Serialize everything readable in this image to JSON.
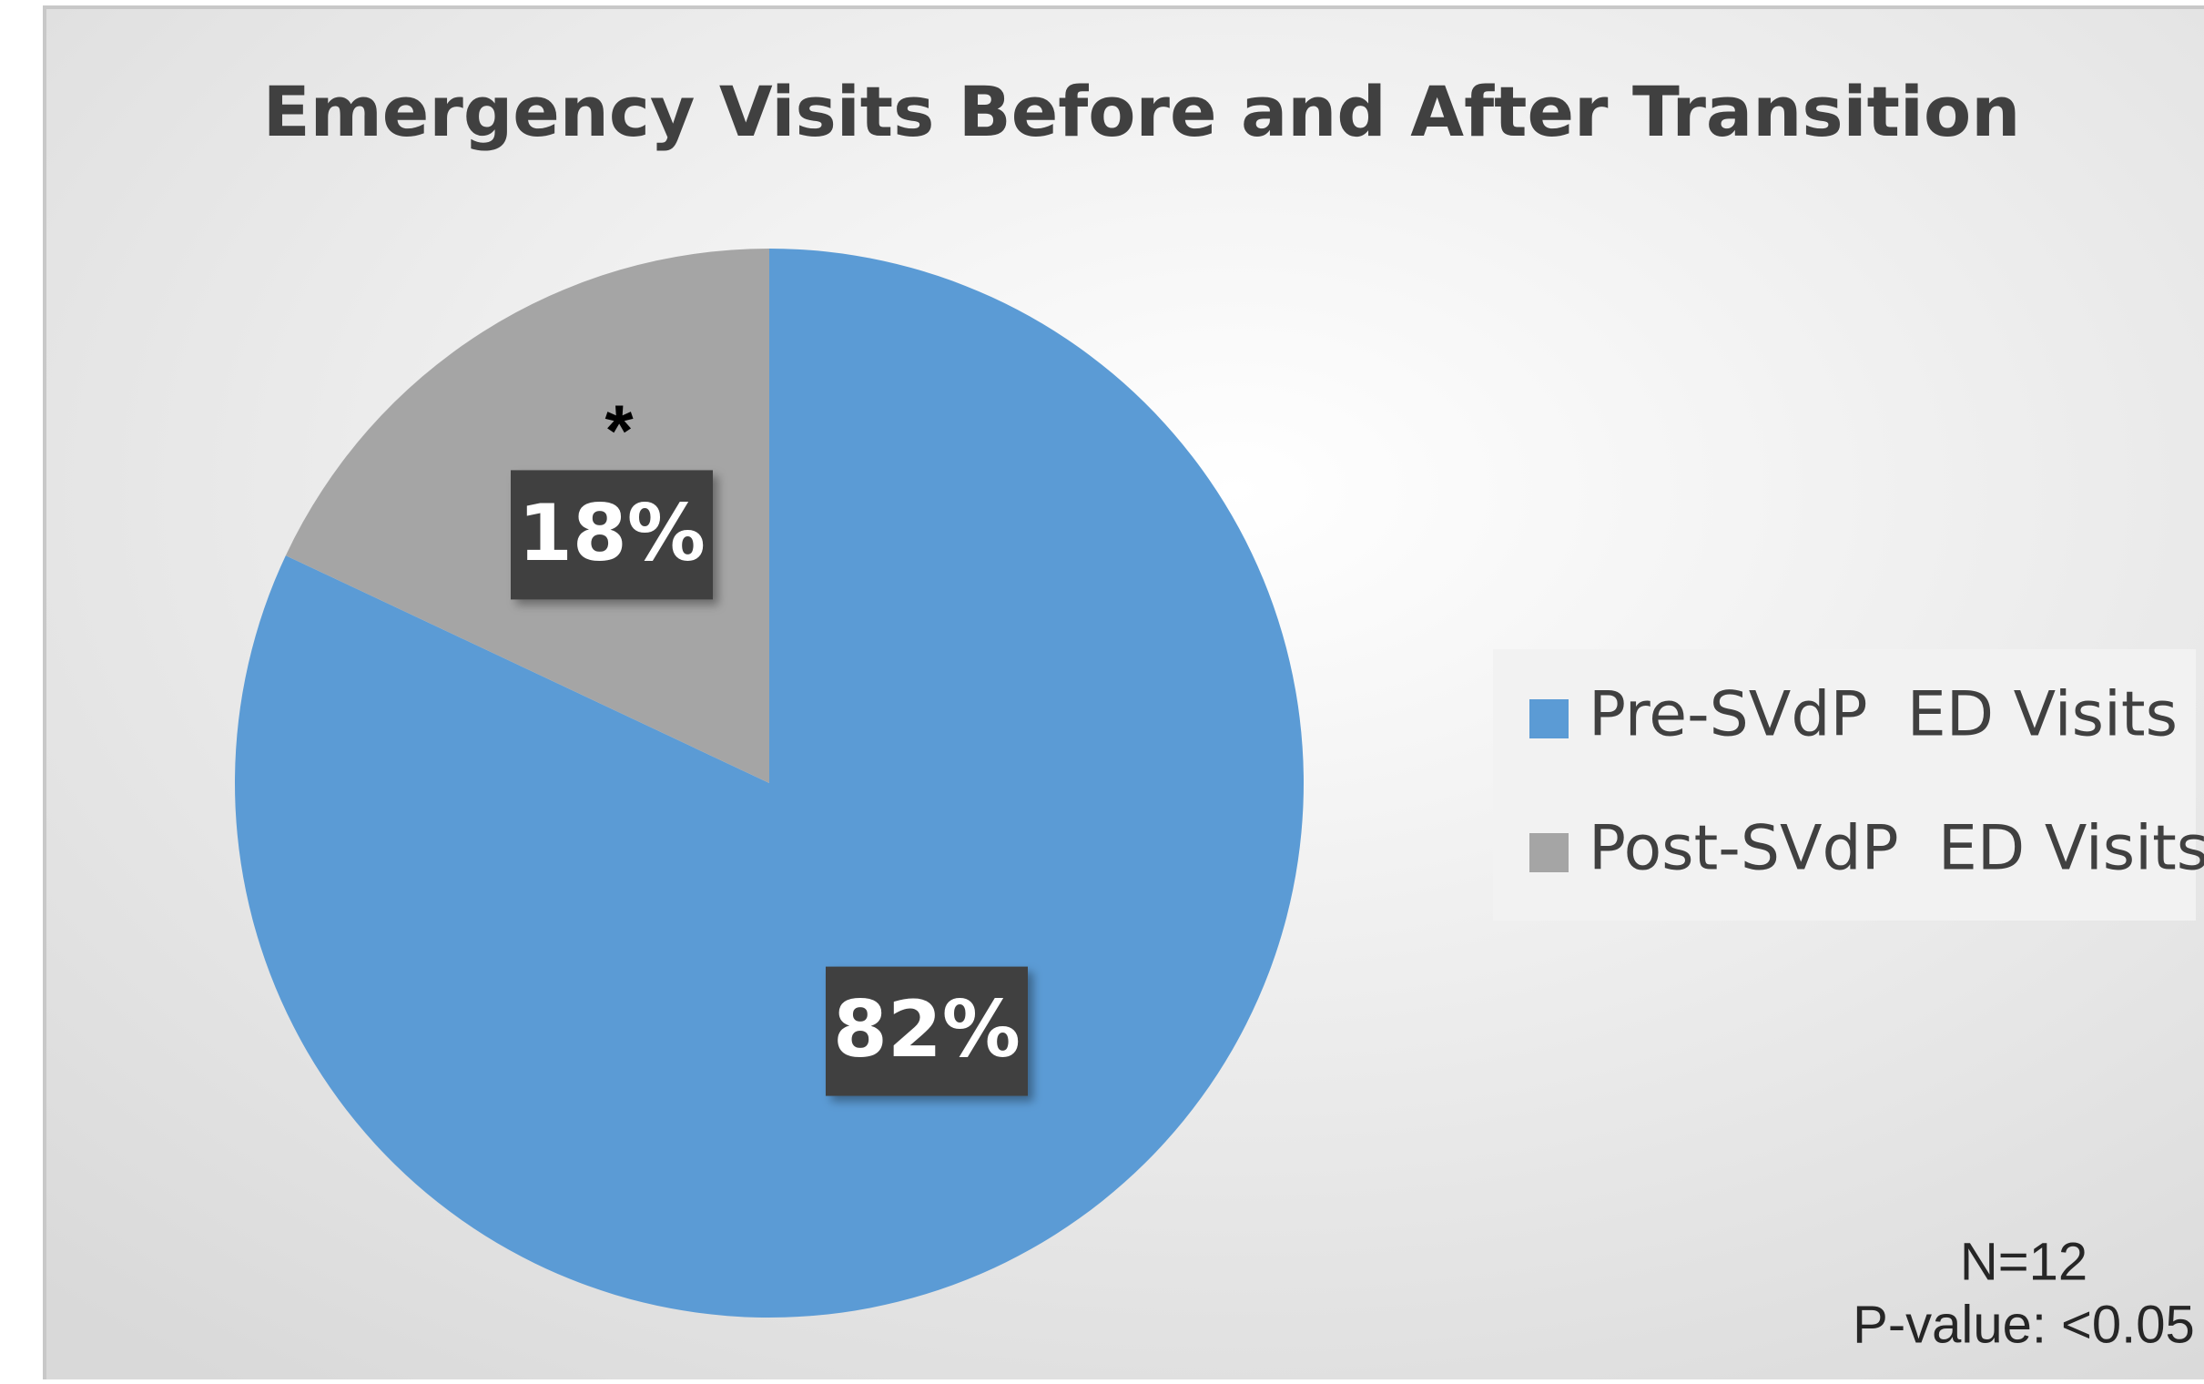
{
  "chart_data": {
    "type": "pie",
    "title": "Emergency Visits Before and After Transition",
    "categories": [
      "Pre-SVdP  ED Visits",
      "Post-SVdP  ED Visits"
    ],
    "values": [
      82,
      18
    ],
    "value_labels": [
      "82%",
      "18%"
    ],
    "colors": [
      "#5b9bd5",
      "#a5a5a5"
    ],
    "legend": "right",
    "annotations": [
      "*",
      "N=12",
      "P-value: <0.05"
    ]
  }
}
